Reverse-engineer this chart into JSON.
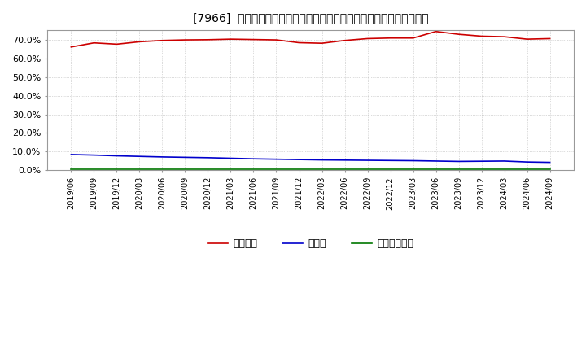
{
  "title": "[7966]  自己資本、のれん、繰延税金資産の総資産に対する比率の推移",
  "background_color": "#ffffff",
  "grid_color": "#999999",
  "plot_bg_color": "#ffffff",
  "x_labels": [
    "2019/06",
    "2019/09",
    "2019/12",
    "2020/03",
    "2020/06",
    "2020/09",
    "2020/12",
    "2021/03",
    "2021/06",
    "2021/09",
    "2021/12",
    "2022/03",
    "2022/06",
    "2022/09",
    "2022/12",
    "2023/03",
    "2023/06",
    "2023/09",
    "2023/12",
    "2024/03",
    "2024/06",
    "2024/09"
  ],
  "jikoshihon": [
    66.0,
    68.2,
    67.5,
    68.8,
    69.5,
    69.8,
    69.9,
    70.2,
    70.0,
    69.8,
    68.3,
    68.0,
    69.5,
    70.5,
    70.8,
    70.8,
    74.3,
    72.8,
    71.8,
    71.5,
    70.2,
    70.5
  ],
  "noren": [
    8.5,
    8.2,
    7.8,
    7.5,
    7.2,
    7.0,
    6.8,
    6.5,
    6.2,
    6.0,
    5.8,
    5.6,
    5.5,
    5.4,
    5.3,
    5.2,
    5.0,
    4.8,
    4.9,
    5.0,
    4.5,
    4.3
  ],
  "kurinobe": [
    0.8,
    0.8,
    0.8,
    0.8,
    0.8,
    0.8,
    0.8,
    0.8,
    0.8,
    0.8,
    0.8,
    0.8,
    0.8,
    0.8,
    0.8,
    0.8,
    0.8,
    0.8,
    0.8,
    0.8,
    0.8,
    0.8
  ],
  "jikoshihon_color": "#cc0000",
  "noren_color": "#0000cc",
  "kurinobe_color": "#007700",
  "legend_labels": [
    "自己資本",
    "のれん",
    "繰延税金資産"
  ],
  "ylim": [
    0,
    75
  ],
  "yticks": [
    0,
    10,
    20,
    30,
    40,
    50,
    60,
    70
  ]
}
